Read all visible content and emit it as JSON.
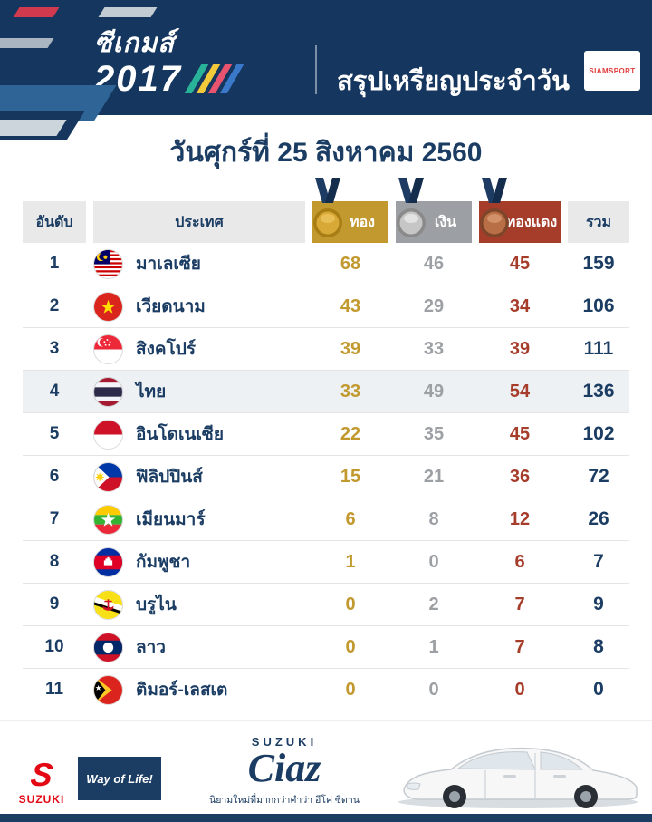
{
  "header": {
    "logo_line1": "ซีเกมส์",
    "logo_line2": "2017",
    "title": "สรุปเหรียญประจำวัน",
    "brand": "SIAMSPORT"
  },
  "date_title": "วันศุกร์ที่ 25 สิงหาคม 2560",
  "table": {
    "columns": {
      "rank": "อันดับ",
      "country": "ประเทศ",
      "gold": "ทอง",
      "silver": "เงิน",
      "bronze": "ทองแดง",
      "total": "รวม"
    },
    "rows": [
      {
        "rank": "1",
        "country": "มาเลเซีย",
        "flag": "malaysia",
        "gold": "68",
        "silver": "46",
        "bronze": "45",
        "total": "159",
        "highlight": false
      },
      {
        "rank": "2",
        "country": "เวียดนาม",
        "flag": "vietnam",
        "gold": "43",
        "silver": "29",
        "bronze": "34",
        "total": "106",
        "highlight": false
      },
      {
        "rank": "3",
        "country": "สิงคโปร์",
        "flag": "singapore",
        "gold": "39",
        "silver": "33",
        "bronze": "39",
        "total": "111",
        "highlight": false
      },
      {
        "rank": "4",
        "country": "ไทย",
        "flag": "thailand",
        "gold": "33",
        "silver": "49",
        "bronze": "54",
        "total": "136",
        "highlight": true
      },
      {
        "rank": "5",
        "country": "อินโดเนเซีย",
        "flag": "indonesia",
        "gold": "22",
        "silver": "35",
        "bronze": "45",
        "total": "102",
        "highlight": false
      },
      {
        "rank": "6",
        "country": "ฟิลิปปินส์",
        "flag": "philippines",
        "gold": "15",
        "silver": "21",
        "bronze": "36",
        "total": "72",
        "highlight": false
      },
      {
        "rank": "7",
        "country": "เมียนมาร์",
        "flag": "myanmar",
        "gold": "6",
        "silver": "8",
        "bronze": "12",
        "total": "26",
        "highlight": false
      },
      {
        "rank": "8",
        "country": "กัมพูชา",
        "flag": "cambodia",
        "gold": "1",
        "silver": "0",
        "bronze": "6",
        "total": "7",
        "highlight": false
      },
      {
        "rank": "9",
        "country": "บรูไน",
        "flag": "brunei",
        "gold": "0",
        "silver": "2",
        "bronze": "7",
        "total": "9",
        "highlight": false
      },
      {
        "rank": "10",
        "country": "ลาว",
        "flag": "laos",
        "gold": "0",
        "silver": "1",
        "bronze": "7",
        "total": "8",
        "highlight": false
      },
      {
        "rank": "11",
        "country": "ติมอร์-เลสเต",
        "flag": "timor_leste",
        "gold": "0",
        "silver": "0",
        "bronze": "0",
        "total": "0",
        "highlight": false
      }
    ]
  },
  "footer": {
    "suzuki_s": "S",
    "suzuki": "SUZUKI",
    "slogan": "Way of Life!",
    "ad_brand": "SUZUKI",
    "ad_model": "Ciaz",
    "ad_tagline": "นิยามใหม่ที่มากกว่าคำว่า อีโค่ ซีดาน"
  },
  "colors": {
    "navy": "#1c3d63",
    "gold": "#c2992e",
    "silver": "#9c9fa3",
    "bronze": "#a63d2b",
    "suzuki_red": "#e30613",
    "banner": "#15365e",
    "highlight_row": "#eef1f4"
  },
  "chart_data": {
    "type": "table",
    "title": "สรุปเหรียญประจำวัน — วันศุกร์ที่ 25 สิงหาคม 2560 (ซีเกมส์ 2017)",
    "columns": [
      "อันดับ",
      "ประเทศ",
      "ทอง",
      "เงิน",
      "ทองแดง",
      "รวม"
    ],
    "rows": [
      [
        1,
        "มาเลเซีย",
        68,
        46,
        45,
        159
      ],
      [
        2,
        "เวียดนาม",
        43,
        29,
        34,
        106
      ],
      [
        3,
        "สิงคโปร์",
        39,
        33,
        39,
        111
      ],
      [
        4,
        "ไทย",
        33,
        49,
        54,
        136
      ],
      [
        5,
        "อินโดเนเซีย",
        22,
        35,
        45,
        102
      ],
      [
        6,
        "ฟิลิปปินส์",
        15,
        21,
        36,
        72
      ],
      [
        7,
        "เมียนมาร์",
        6,
        8,
        12,
        26
      ],
      [
        8,
        "กัมพูชา",
        1,
        0,
        6,
        7
      ],
      [
        9,
        "บรูไน",
        0,
        2,
        7,
        9
      ],
      [
        10,
        "ลาว",
        0,
        1,
        7,
        8
      ],
      [
        11,
        "ติมอร์-เลสเต",
        0,
        0,
        0,
        0
      ]
    ]
  }
}
